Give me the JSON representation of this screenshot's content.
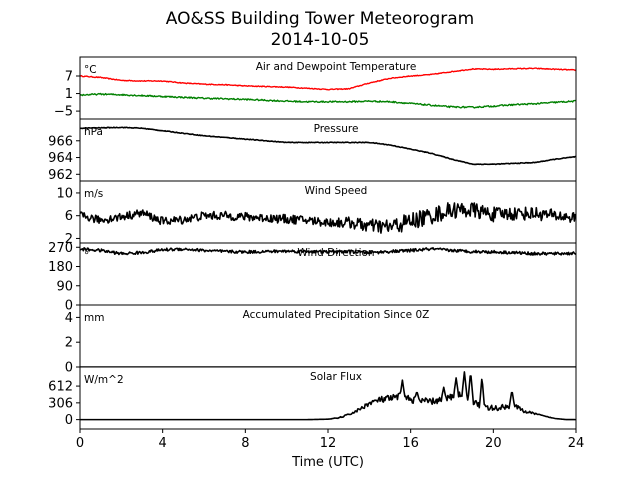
{
  "title_line1": "AO&SS Building Tower Meteorogram",
  "title_line2": "2014-10-05",
  "chart_data": {
    "type": "line",
    "x_label": "Time (UTC)",
    "x_ticks": [
      "0",
      "4",
      "8",
      "12",
      "16",
      "20",
      "24"
    ],
    "x_range": [
      0,
      24
    ],
    "panels": [
      {
        "key": "temp",
        "label": "Air and Dewpoint Temperature",
        "unit": "°C",
        "yticks": [
          7,
          1,
          -5
        ],
        "ytick_labels": [
          "7",
          "1",
          "−5"
        ],
        "ylim": [
          -7.7,
          13.5
        ],
        "series": [
          {
            "color": "#ff0000",
            "noise": 0.15,
            "points": [
              [
                0,
                7
              ],
              [
                1,
                6.5
              ],
              [
                2,
                5.5
              ],
              [
                3,
                5.3
              ],
              [
                4,
                5.3
              ],
              [
                5,
                4.6
              ],
              [
                6,
                4.2
              ],
              [
                7,
                4
              ],
              [
                8,
                3.6
              ],
              [
                9,
                3.4
              ],
              [
                10,
                3.2
              ],
              [
                11,
                2.8
              ],
              [
                12,
                2.4
              ],
              [
                13,
                2.6
              ],
              [
                14,
                4.6
              ],
              [
                15,
                6.2
              ],
              [
                16,
                7
              ],
              [
                17,
                7.5
              ],
              [
                18,
                8.5
              ],
              [
                19,
                9.4
              ],
              [
                20,
                9.3
              ],
              [
                21,
                9.5
              ],
              [
                22,
                9.6
              ],
              [
                23,
                9.3
              ],
              [
                24,
                9
              ]
            ]
          },
          {
            "color": "#008000",
            "noise": 0.25,
            "points": [
              [
                0,
                0.5
              ],
              [
                1,
                0.8
              ],
              [
                2,
                0.6
              ],
              [
                3,
                0.3
              ],
              [
                4,
                0
              ],
              [
                5,
                -0.3
              ],
              [
                6,
                -0.6
              ],
              [
                7,
                -0.8
              ],
              [
                8,
                -1
              ],
              [
                9,
                -1.3
              ],
              [
                10,
                -1.6
              ],
              [
                11,
                -1.8
              ],
              [
                12,
                -1.8
              ],
              [
                13,
                -1.8
              ],
              [
                14,
                -1.6
              ],
              [
                15,
                -1.8
              ],
              [
                16,
                -2.4
              ],
              [
                17,
                -3
              ],
              [
                18,
                -3.6
              ],
              [
                19,
                -3.7
              ],
              [
                20,
                -3.3
              ],
              [
                21,
                -2.8
              ],
              [
                22,
                -2.5
              ],
              [
                23,
                -2
              ],
              [
                24,
                -1.6
              ]
            ]
          }
        ]
      },
      {
        "key": "pressure",
        "label": "Pressure",
        "unit": "hPa",
        "yticks": [
          966,
          964,
          962
        ],
        "ytick_labels": [
          "966",
          "964",
          "962"
        ],
        "ylim": [
          961.2,
          968.6
        ],
        "series": [
          {
            "color": "#000000",
            "noise": 0.04,
            "points": [
              [
                0,
                967.5
              ],
              [
                2,
                967.6
              ],
              [
                3,
                967.5
              ],
              [
                4,
                967.2
              ],
              [
                6,
                966.6
              ],
              [
                8,
                966.2
              ],
              [
                10,
                965.8
              ],
              [
                12,
                965.8
              ],
              [
                14,
                965.8
              ],
              [
                15,
                965.5
              ],
              [
                16,
                965
              ],
              [
                17,
                964.5
              ],
              [
                18,
                963.8
              ],
              [
                19,
                963.2
              ],
              [
                20,
                963.2
              ],
              [
                21,
                963.3
              ],
              [
                22,
                963.4
              ],
              [
                23,
                963.8
              ],
              [
                24,
                964.1
              ]
            ]
          }
        ]
      },
      {
        "key": "wind_speed",
        "label": "Wind Speed",
        "unit": "m/s",
        "yticks": [
          10,
          6,
          2
        ],
        "ytick_labels": [
          "10",
          "6",
          "2"
        ],
        "ylim": [
          1.2,
          12.1
        ],
        "series": [
          {
            "color": "#000000",
            "noise_by_time": [
              [
                0,
                0.7
              ],
              [
                12,
                0.8
              ],
              [
                16,
                1.6
              ],
              [
                24,
                1.0
              ]
            ],
            "points": [
              [
                0,
                6
              ],
              [
                1,
                5.2
              ],
              [
                2,
                5.8
              ],
              [
                3,
                6.5
              ],
              [
                4,
                5
              ],
              [
                5,
                5.3
              ],
              [
                6,
                6
              ],
              [
                7,
                6
              ],
              [
                8,
                5.8
              ],
              [
                9,
                5.6
              ],
              [
                10,
                5.4
              ],
              [
                11,
                5.2
              ],
              [
                12,
                4.8
              ],
              [
                13,
                4.8
              ],
              [
                14,
                4.2
              ],
              [
                15,
                4
              ],
              [
                16,
                5
              ],
              [
                17,
                6
              ],
              [
                18,
                7
              ],
              [
                19,
                7
              ],
              [
                20,
                6.2
              ],
              [
                21,
                6.4
              ],
              [
                22,
                6.4
              ],
              [
                23,
                6
              ],
              [
                24,
                5.6
              ]
            ]
          }
        ]
      },
      {
        "key": "wind_dir",
        "label": "Wind Direction",
        "unit": "°",
        "yticks": [
          270,
          180,
          90,
          0
        ],
        "ytick_labels": [
          "270",
          "180",
          "90",
          "0"
        ],
        "ylim": [
          0,
          290
        ],
        "series": [
          {
            "color": "#000000",
            "noise": 7,
            "points": [
              [
                0,
                262
              ],
              [
                1,
                255
              ],
              [
                2,
                240
              ],
              [
                3,
                245
              ],
              [
                4,
                258
              ],
              [
                5,
                262
              ],
              [
                6,
                255
              ],
              [
                7,
                250
              ],
              [
                8,
                248
              ],
              [
                9,
                250
              ],
              [
                10,
                252
              ],
              [
                11,
                250
              ],
              [
                12,
                248
              ],
              [
                13,
                250
              ],
              [
                14,
                245
              ],
              [
                15,
                250
              ],
              [
                16,
                255
              ],
              [
                17,
                262
              ],
              [
                18,
                255
              ],
              [
                19,
                250
              ],
              [
                20,
                248
              ],
              [
                21,
                245
              ],
              [
                22,
                240
              ],
              [
                23,
                240
              ],
              [
                24,
                242
              ]
            ]
          }
        ]
      },
      {
        "key": "precip",
        "label": "Accumulated Precipitation Since 0Z",
        "unit": "mm",
        "yticks": [
          4,
          2,
          0
        ],
        "ytick_labels": [
          "4",
          "2",
          "0"
        ],
        "ylim": [
          0,
          5
        ],
        "series": [
          {
            "color": "#000000",
            "noise": 0,
            "points": [
              [
                0,
                0
              ],
              [
                24,
                0
              ]
            ]
          }
        ]
      },
      {
        "key": "solar",
        "label": "Solar Flux",
        "unit": "W/m^2",
        "yticks": [
          612,
          306,
          0
        ],
        "ytick_labels": [
          "612",
          "306",
          "0"
        ],
        "ylim": [
          -171,
          960
        ],
        "series": [
          {
            "color": "#000000",
            "noise_by_time": [
              [
                0,
                0
              ],
              [
                12,
                0
              ],
              [
                13.5,
                30
              ],
              [
                15,
                70
              ],
              [
                17,
                60
              ],
              [
                20,
                60
              ],
              [
                21,
                40
              ],
              [
                22,
                15
              ],
              [
                23,
                0
              ],
              [
                24,
                0
              ]
            ],
            "points": [
              [
                0,
                0
              ],
              [
                11,
                0
              ],
              [
                12,
                8
              ],
              [
                12.5,
                30
              ],
              [
                13,
                90
              ],
              [
                13.5,
                180
              ],
              [
                14,
                300
              ],
              [
                14.5,
                360
              ],
              [
                15,
                380
              ],
              [
                15.5,
                420
              ],
              [
                16,
                370
              ],
              [
                16.5,
                340
              ],
              [
                17,
                330
              ],
              [
                17.5,
                360
              ],
              [
                18,
                420
              ],
              [
                18.5,
                470
              ],
              [
                19,
                340
              ],
              [
                19.5,
                220
              ],
              [
                20,
                200
              ],
              [
                20.5,
                230
              ],
              [
                21,
                260
              ],
              [
                21.5,
                150
              ],
              [
                22,
                110
              ],
              [
                22.5,
                60
              ],
              [
                23,
                20
              ],
              [
                23.5,
                2
              ],
              [
                24,
                0
              ]
            ],
            "spikes": [
              [
                15.6,
                720
              ],
              [
                16.3,
                520
              ],
              [
                17.6,
                590
              ],
              [
                18.2,
                760
              ],
              [
                18.6,
                870
              ],
              [
                18.9,
                880
              ],
              [
                19.45,
                780
              ],
              [
                20.9,
                540
              ]
            ]
          }
        ]
      }
    ]
  }
}
